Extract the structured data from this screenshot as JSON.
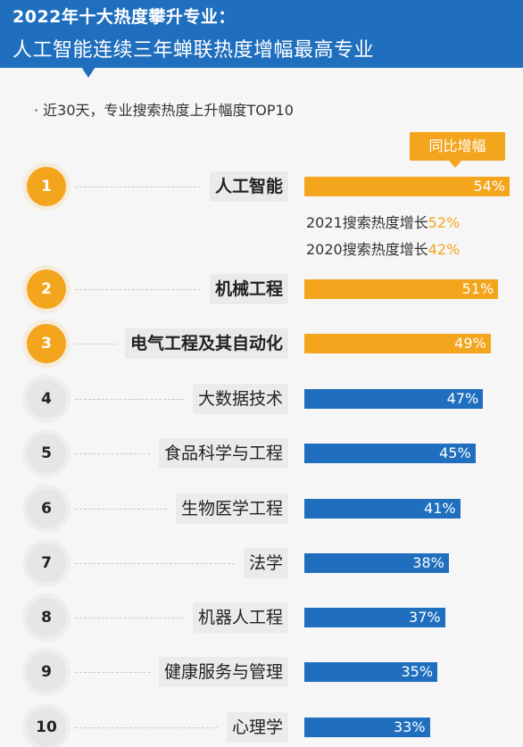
{
  "header": {
    "title_line1": "2022年十大热度攀升专业：",
    "title_line2": "人工智能连续三年蝉联热度增幅最高专业"
  },
  "subtitle": "· 近30天，专业搜索热度上升幅度TOP10",
  "legend_badge": "同比增幅",
  "notes": {
    "line1_prefix": "2021搜索热度增长",
    "line1_value": "52%",
    "line2_prefix": "2020搜索热度增长",
    "line2_value": "42%"
  },
  "colors": {
    "header_blue": "#1f6fbe",
    "top3_orange": "#f3a51d",
    "rest_blue": "#1f6fbe"
  },
  "chart_data": {
    "type": "bar",
    "orientation": "horizontal",
    "title": "专业搜索热度上升幅度TOP10",
    "categories": [
      "人工智能",
      "机械工程",
      "电气工程及其自动化",
      "大数据技术",
      "食品科学与工程",
      "生物医学工程",
      "法学",
      "机器人工程",
      "健康服务与管理",
      "心理学"
    ],
    "ranks": [
      "1",
      "2",
      "3",
      "4",
      "5",
      "6",
      "7",
      "8",
      "9",
      "10"
    ],
    "series": [
      {
        "name": "同比增幅",
        "values": [
          54,
          51,
          49,
          47,
          45,
          41,
          38,
          37,
          35,
          33
        ]
      }
    ],
    "value_labels": [
      "54%",
      "51%",
      "49%",
      "47%",
      "45%",
      "41%",
      "38%",
      "37%",
      "35%",
      "33%"
    ],
    "highlight_top": 3,
    "annotations": [
      {
        "category": "人工智能",
        "text": "2021搜索热度增长",
        "value": "52%"
      },
      {
        "category": "人工智能",
        "text": "2020搜索热度增长",
        "value": "42%"
      }
    ]
  }
}
